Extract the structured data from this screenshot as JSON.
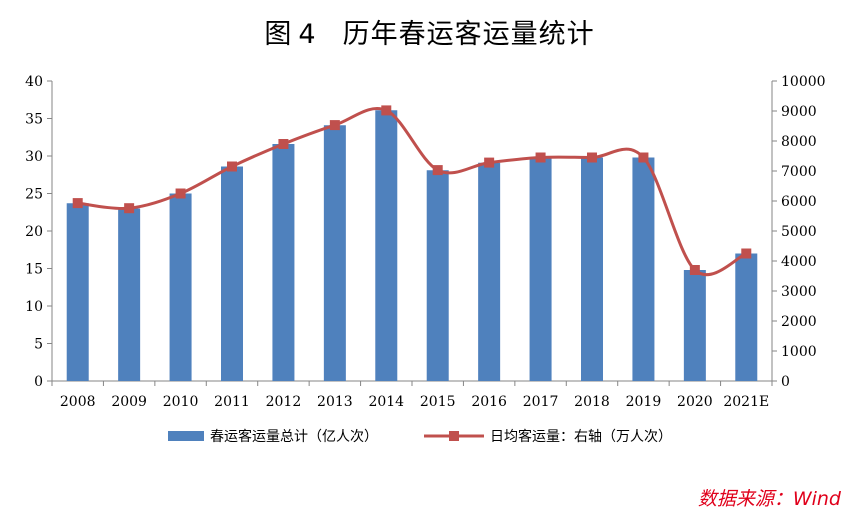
{
  "title": {
    "label": "图",
    "number": "4",
    "text": "历年春运客运量统计"
  },
  "source": "数据来源：Wind",
  "colors": {
    "bar": "#4f81bd",
    "line": "#c0504d"
  },
  "chart_data": {
    "type": "bar",
    "categories": [
      "2008",
      "2009",
      "2010",
      "2011",
      "2012",
      "2013",
      "2014",
      "2015",
      "2016",
      "2017",
      "2018",
      "2019",
      "2020",
      "2021E"
    ],
    "series": [
      {
        "name": "春运客运量总计（亿人次）",
        "type": "bar",
        "axis": "left",
        "values": [
          23.7,
          23.0,
          25.0,
          28.6,
          31.6,
          34.1,
          36.1,
          28.1,
          29.1,
          29.8,
          29.8,
          29.8,
          14.8,
          17.0
        ]
      },
      {
        "name": "日均客运量：右轴（万人次）",
        "type": "line",
        "axis": "right",
        "values": [
          5930,
          5760,
          6250,
          7150,
          7900,
          8530,
          9020,
          7030,
          7280,
          7450,
          7450,
          7450,
          3700,
          4250
        ]
      }
    ],
    "ylim_left": [
      0,
      40
    ],
    "ylim_right": [
      0,
      10000
    ],
    "yticks_left": [
      "0",
      "5",
      "10",
      "15",
      "20",
      "25",
      "30",
      "35",
      "40"
    ],
    "yticks_right": [
      "0",
      "1000",
      "2000",
      "3000",
      "4000",
      "5000",
      "6000",
      "7000",
      "8000",
      "9000",
      "10000"
    ],
    "legend_position": "bottom",
    "grid": false
  }
}
